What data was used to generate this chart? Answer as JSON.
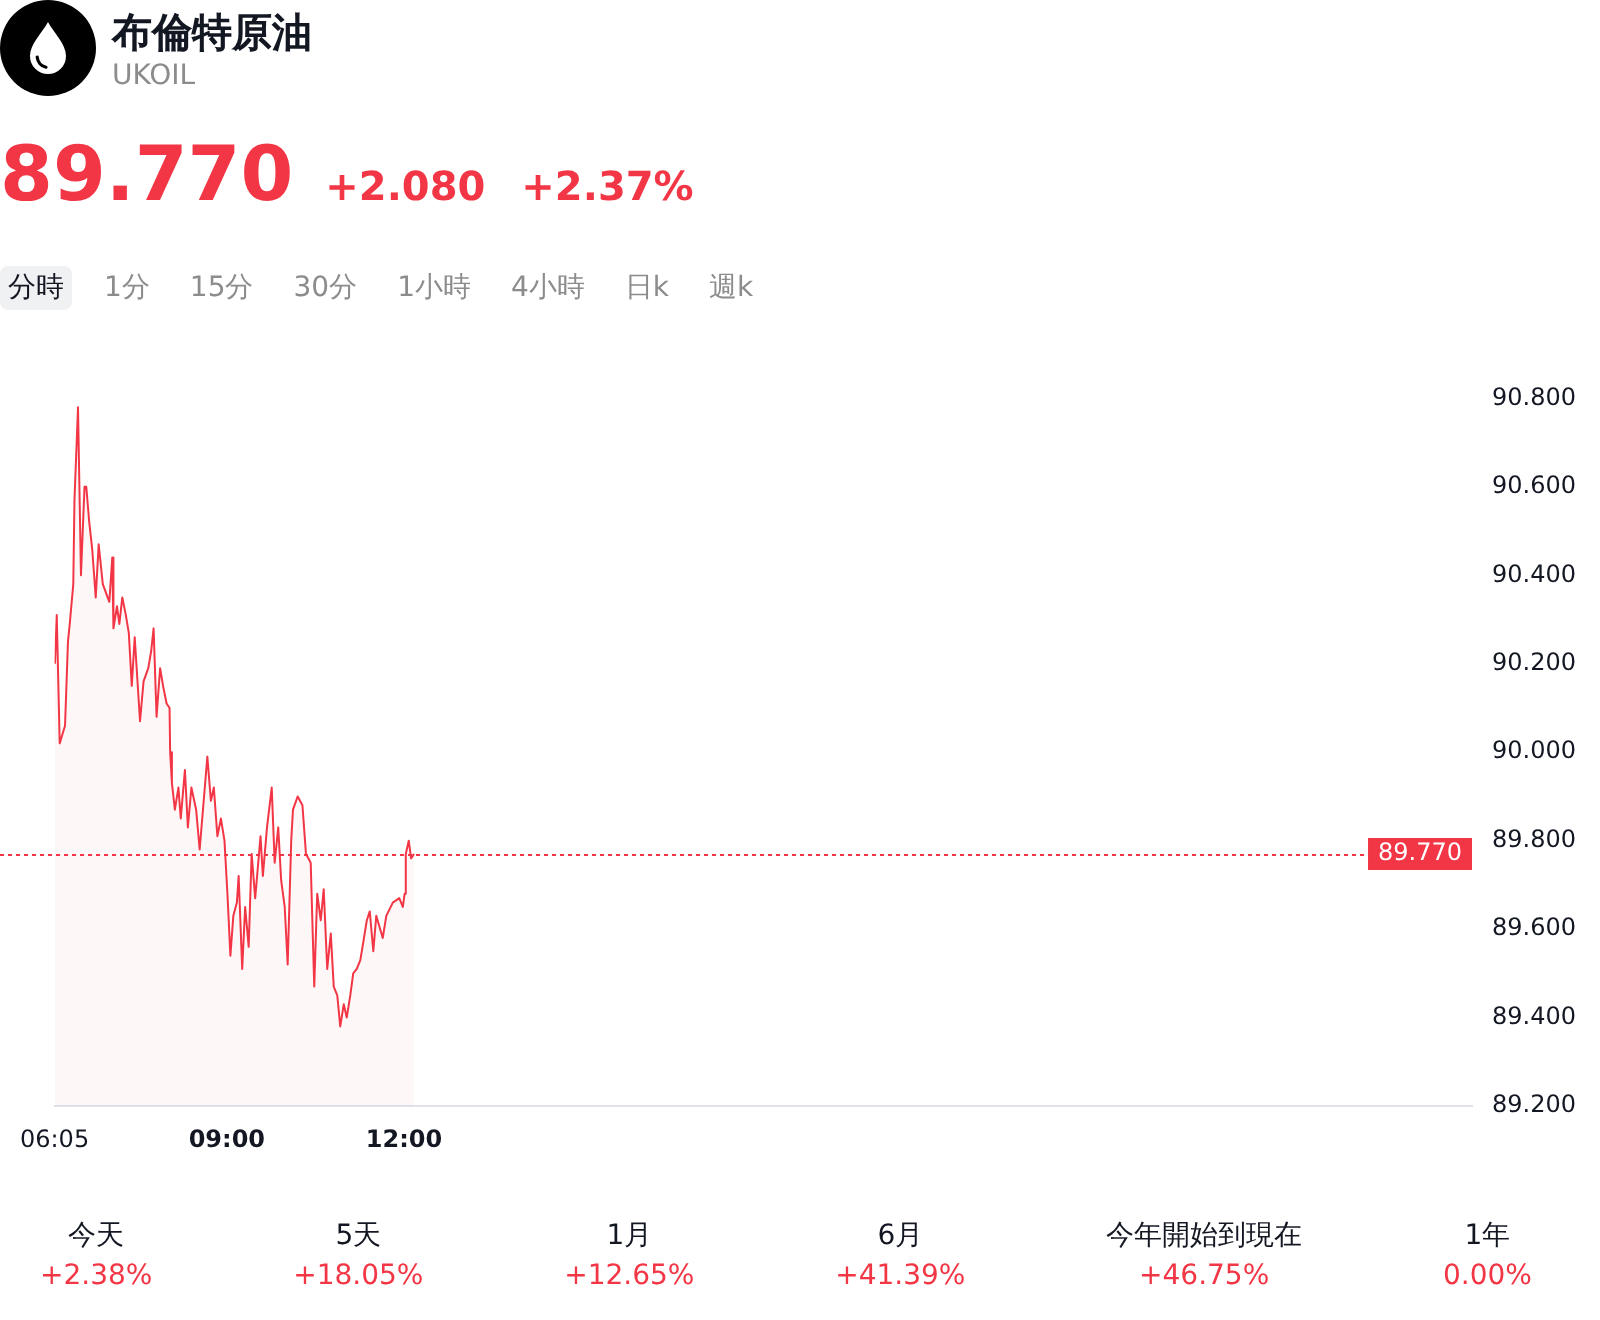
{
  "chart_data": [
    {
      "type": "area",
      "title": "布倫特原油",
      "subtitle": "UKOIL",
      "annotations": [
        "89.770",
        "+2.080",
        "+2.37%",
        "分時",
        "1分",
        "15分",
        "30分",
        "1小時",
        "4小時",
        "日k",
        "週k"
      ],
      "x": [
        6.09,
        6.12,
        6.17,
        6.26,
        6.31,
        6.34,
        6.4,
        6.42,
        6.48,
        6.53,
        6.59,
        6.62,
        6.67,
        6.72,
        6.78,
        6.83,
        6.9,
        7.01,
        7.06,
        7.08,
        7.14,
        7.18,
        7.23,
        7.29,
        7.34,
        7.39,
        7.44,
        7.53,
        7.59,
        7.67,
        7.72,
        7.76,
        7.81,
        7.87,
        7.92,
        7.98,
        8.03,
        8.04,
        8.07,
        8.12,
        8.18,
        8.22,
        8.29,
        8.34,
        8.4,
        8.48,
        8.54,
        8.67,
        8.73,
        8.78,
        8.84,
        8.9,
        8.96,
        9.01,
        9.06,
        9.11,
        9.17,
        9.2,
        9.26,
        9.31,
        9.37,
        9.42,
        9.48,
        9.57,
        9.61,
        9.68,
        9.76,
        9.81,
        9.87,
        9.92,
        9.98,
        10.03,
        10.09,
        10.12,
        10.2,
        10.28,
        10.34,
        10.42,
        10.48,
        10.53,
        10.59,
        10.64,
        10.7,
        10.76,
        10.81,
        10.87,
        10.92,
        10.98,
        11.03,
        11.09,
        11.14,
        11.2,
        11.26,
        11.31,
        11.37,
        11.42,
        11.48,
        11.53,
        11.64,
        11.7,
        11.81,
        11.92,
        11.98,
        12.01,
        12.03,
        12.08,
        12.12,
        12.17
      ],
      "values": [
        90.2,
        90.31,
        90.02,
        90.06,
        90.25,
        90.29,
        90.38,
        90.57,
        90.78,
        90.4,
        90.6,
        90.6,
        90.52,
        90.46,
        90.35,
        90.47,
        90.38,
        90.34,
        90.44,
        90.28,
        90.33,
        90.29,
        90.35,
        90.31,
        90.27,
        90.15,
        90.26,
        90.07,
        90.16,
        90.19,
        90.23,
        90.28,
        90.08,
        90.19,
        90.15,
        90.11,
        90.1,
        90.0,
        89.93,
        89.87,
        89.92,
        89.85,
        89.96,
        89.83,
        89.92,
        89.87,
        89.78,
        89.99,
        89.89,
        89.92,
        89.81,
        89.85,
        89.8,
        89.68,
        89.54,
        89.63,
        89.66,
        89.72,
        89.51,
        89.65,
        89.56,
        89.77,
        89.67,
        89.81,
        89.72,
        89.83,
        89.92,
        89.75,
        89.83,
        89.71,
        89.65,
        89.52,
        89.8,
        89.87,
        89.9,
        89.88,
        89.77,
        89.75,
        89.47,
        89.68,
        89.62,
        89.69,
        89.51,
        89.59,
        89.47,
        89.45,
        89.38,
        89.43,
        89.4,
        89.45,
        89.5,
        89.51,
        89.53,
        89.57,
        89.62,
        89.64,
        89.55,
        89.63,
        89.58,
        89.63,
        89.66,
        89.67,
        89.65,
        89.68,
        89.77,
        89.8,
        89.76,
        89.77
      ],
      "color": "#f23645",
      "xlim": [
        6.0833,
        30.0833
      ],
      "xticks": [
        {
          "value": 6.0833,
          "label": "06:05"
        },
        {
          "value": 9,
          "label": "09:00"
        },
        {
          "value": 12,
          "label": "12:00"
        }
      ],
      "ylim": [
        89.2,
        90.8
      ],
      "yticks": [
        {
          "value": 89.2,
          "label": "89.200"
        },
        {
          "value": 89.4,
          "label": "89.400"
        },
        {
          "value": 89.6,
          "label": "89.600"
        },
        {
          "value": 89.8,
          "label": "89.800"
        },
        {
          "value": 90.0,
          "label": "90.000"
        },
        {
          "value": 90.2,
          "label": "90.200"
        },
        {
          "value": 90.4,
          "label": "90.400"
        },
        {
          "value": 90.6,
          "label": "90.600"
        },
        {
          "value": 90.8,
          "label": "90.800"
        }
      ],
      "ref_lines": [
        {
          "axis": "y",
          "value": 89.77,
          "label": "89.770",
          "color": "#f23645",
          "line_style": "dotted"
        }
      ],
      "grid": false,
      "legend": false,
      "marker": "none"
    },
    {
      "type": "other",
      "categories": [
        "今天",
        "5天",
        "1月",
        "6月",
        "今年開始到現在",
        "1年"
      ],
      "value_labels": [
        "+2.38%",
        "+18.05%",
        "+12.65%",
        "+41.39%",
        "+46.75%",
        "0.00%"
      ],
      "color": "#f23645"
    }
  ]
}
